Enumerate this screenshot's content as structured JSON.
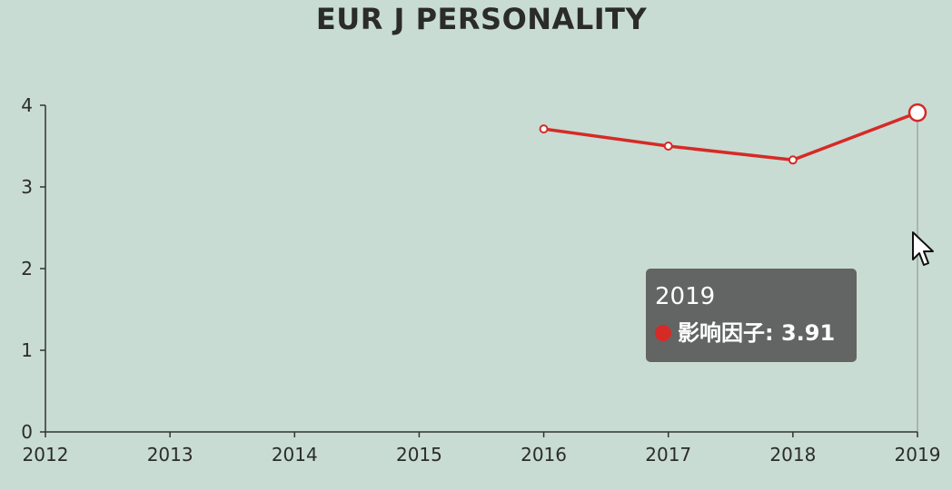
{
  "chart_data": {
    "type": "line",
    "title": "EUR J PERSONALITY",
    "x": [
      "2012",
      "2013",
      "2014",
      "2015",
      "2016",
      "2017",
      "2018",
      "2019"
    ],
    "series": [
      {
        "name": "影响因子",
        "values": [
          null,
          null,
          null,
          null,
          3.71,
          3.5,
          3.33,
          3.91
        ],
        "color": "#d62a26"
      }
    ],
    "ylim": [
      0,
      4
    ],
    "yticks": [
      0,
      1,
      2,
      3,
      4
    ],
    "xlabel": "",
    "ylabel": "",
    "grid": false,
    "highlight_index": 7
  },
  "tooltip": {
    "title": "2019",
    "series_label": "影响因子",
    "value_text": "3.91",
    "dot_color": "#d62a26"
  },
  "colors": {
    "background": "#c8dcd3",
    "axis": "#333333",
    "crosshair": "#8c8c8c"
  }
}
